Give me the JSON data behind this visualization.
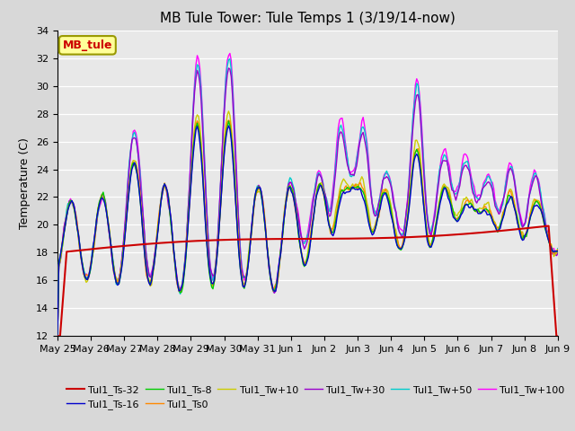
{
  "title": "MB Tule Tower: Tule Temps 1 (3/19/14-now)",
  "ylabel": "Temperature (C)",
  "ylim": [
    12,
    34
  ],
  "yticks": [
    12,
    14,
    16,
    18,
    20,
    22,
    24,
    26,
    28,
    30,
    32,
    34
  ],
  "x_labels": [
    "May 25",
    "May 26",
    "May 27",
    "May 28",
    "May 29",
    "May 30",
    "May 31",
    "Jun 1",
    "Jun 2",
    "Jun 3",
    "Jun 4",
    "Jun 5",
    "Jun 6",
    "Jun 7",
    "Jun 8",
    "Jun 9"
  ],
  "series_colors": {
    "Tul1_Ts-32": "#cc0000",
    "Tul1_Ts-16": "#0000cc",
    "Tul1_Ts-8": "#00cc00",
    "Tul1_Ts0": "#ff8800",
    "Tul1_Tw+10": "#cccc00",
    "Tul1_Tw+30": "#9900cc",
    "Tul1_Tw+50": "#00cccc",
    "Tul1_Tw+100": "#ff00ff"
  },
  "legend_label": "MB_tule",
  "legend_box_facecolor": "#ffff99",
  "legend_box_edgecolor": "#999900",
  "legend_text_color": "#cc0000",
  "fig_facecolor": "#d8d8d8",
  "ax_facecolor": "#e8e8e8",
  "grid_color": "#ffffff",
  "title_fontsize": 11,
  "label_fontsize": 9,
  "tick_fontsize": 8,
  "legend_fontsize": 8,
  "num_points": 384
}
